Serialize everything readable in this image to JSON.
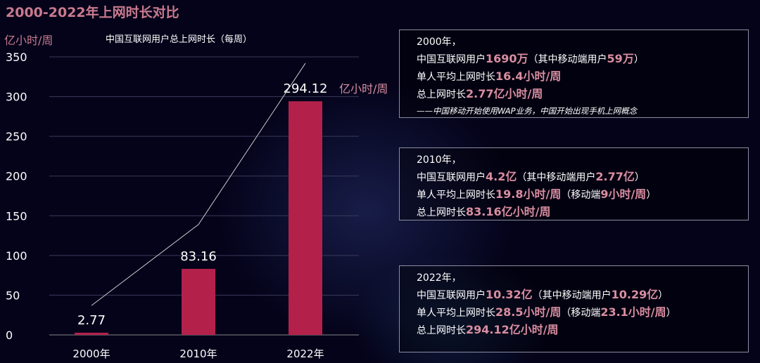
{
  "title": "2000-2022年上网时长对比",
  "colors": {
    "bar": "#b3214b",
    "accent": "#d98ea0",
    "title": "#c97a8e"
  },
  "chart_data": {
    "type": "bar",
    "title": "中国互联网用户总上网时长（每周）",
    "ylabel": "亿小时/周",
    "ylim": [
      0,
      350
    ],
    "yticks": [
      "0",
      "50",
      "100",
      "150",
      "200",
      "250",
      "300",
      "350"
    ],
    "categories": [
      "2000年",
      "2010年",
      "2022年"
    ],
    "values": [
      2.77,
      83.16,
      294.12
    ],
    "data_labels": [
      "2.77",
      "83.16",
      "294.12"
    ],
    "last_label_unit": "亿小时/周",
    "trend_line": [
      37,
      139,
      342
    ],
    "grid": true
  },
  "boxes": [
    {
      "year": "2000年，",
      "l1a": "中国互联网用户",
      "l1b": "1690万",
      "l1c": "（其中移动端用户",
      "l1d": "59万",
      "l1e": "）",
      "l2a": "单人平均上网时长",
      "l2b": "16.4小时/周",
      "l2c": "",
      "l2d": "",
      "l2e": "",
      "l3a": "总上网时长",
      "l3b": "2.77亿小时/周",
      "note": "——中国移动开始使用WAP业务，中国开始出现手机上网概念"
    },
    {
      "year": "2010年，",
      "l1a": "中国互联网用户",
      "l1b": "4.2亿",
      "l1c": "（其中移动端用户",
      "l1d": "2.77亿",
      "l1e": "）",
      "l2a": "单人平均上网时长",
      "l2b": "19.8小时/周",
      "l2c": "（移动端",
      "l2d": "9小时/周",
      "l2e": "）",
      "l3a": "总上网时长",
      "l3b": "83.16亿小时/周",
      "note": ""
    },
    {
      "year": "2022年，",
      "l1a": "中国互联网用户",
      "l1b": "10.32亿",
      "l1c": "（其中移动端用户",
      "l1d": "10.29亿",
      "l1e": "）",
      "l2a": "单人平均上网时长",
      "l2b": "28.5小时/周",
      "l2c": "（移动端",
      "l2d": "23.1小时/周",
      "l2e": "）",
      "l3a": "总上网时长",
      "l3b": "294.12亿小时/周",
      "note": ""
    }
  ]
}
